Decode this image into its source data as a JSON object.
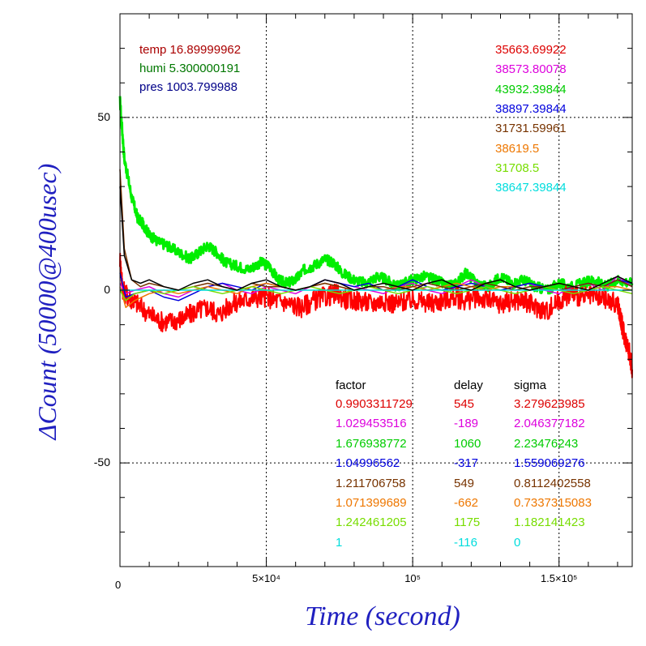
{
  "chart_data": {
    "type": "line",
    "xlabel": "Time (second)",
    "ylabel": "ΔCount (50000@400usec)",
    "xlim": [
      0,
      175000
    ],
    "ylim": [
      -80,
      80
    ],
    "x_ticks": [
      {
        "value": 0,
        "label": "0"
      },
      {
        "value": 50000,
        "label": "5×10⁴"
      },
      {
        "value": 100000,
        "label": "10⁵"
      },
      {
        "value": 150000,
        "label": "1.5×10⁵"
      }
    ],
    "y_ticks": [
      {
        "value": 50,
        "label": "50"
      },
      {
        "value": 0,
        "label": "0"
      },
      {
        "value": -50,
        "label": "-50"
      }
    ],
    "grid": true,
    "env": [
      {
        "label": "temp 16.89999962",
        "color": "#aa0000"
      },
      {
        "label": "humi 5.300000191",
        "color": "#007700"
      },
      {
        "label": "pres 1003.799988",
        "color": "#000088"
      }
    ],
    "legend_values": [
      {
        "value": "35663.69922",
        "color": "#dd0000"
      },
      {
        "value": "38573.80078",
        "color": "#dd00dd"
      },
      {
        "value": "43932.39844",
        "color": "#00cc00"
      },
      {
        "value": "38897.39844",
        "color": "#0000dd"
      },
      {
        "value": "31731.59961",
        "color": "#773300"
      },
      {
        "value": "38619.5",
        "color": "#ee7700"
      },
      {
        "value": "31708.5",
        "color": "#77dd00"
      },
      {
        "value": "38647.39844",
        "color": "#00dddd"
      }
    ],
    "table": {
      "headers": [
        "factor",
        "delay",
        "sigma"
      ],
      "rows": [
        {
          "factor": "0.9903311729",
          "delay": "545",
          "sigma": "3.279623985",
          "color": "#dd0000"
        },
        {
          "factor": "1.029453516",
          "delay": "-189",
          "sigma": "2.046377182",
          "color": "#dd00dd"
        },
        {
          "factor": "1.676938772",
          "delay": "1060",
          "sigma": "2.23476243",
          "color": "#00cc00"
        },
        {
          "factor": "1.04996562",
          "delay": "-317",
          "sigma": "1.559069276",
          "color": "#0000dd"
        },
        {
          "factor": "1.211706758",
          "delay": "549",
          "sigma": "0.8112402558",
          "color": "#773300"
        },
        {
          "factor": "1.071399689",
          "delay": "-662",
          "sigma": "0.7337315083",
          "color": "#ee7700"
        },
        {
          "factor": "1.242461205",
          "delay": "1175",
          "sigma": "1.182141423",
          "color": "#77dd00"
        },
        {
          "factor": "1",
          "delay": "-116",
          "sigma": "0",
          "color": "#00dddd"
        }
      ]
    },
    "series": [
      {
        "color": "#00ee00",
        "band": 3,
        "x": [
          0,
          1500,
          4000,
          6000,
          8000,
          10000,
          13000,
          16000,
          20000,
          24000,
          27000,
          30000,
          33000,
          36000,
          40000,
          44000,
          48000,
          51000,
          54000,
          57000,
          60000,
          63000,
          66000,
          70000,
          73000,
          76000,
          80000,
          84000,
          88000,
          91000,
          94000,
          97000,
          100000,
          104000,
          108000,
          112000,
          115000,
          118000,
          122000,
          126000,
          130000,
          134000,
          138000,
          142000,
          146000,
          150000,
          154000,
          158000,
          162000,
          166000,
          170000,
          175000
        ],
        "y": [
          55,
          38,
          27,
          21,
          19,
          16,
          14,
          13,
          11,
          9,
          11,
          13,
          11,
          8,
          7,
          6,
          8,
          7,
          3,
          2,
          3,
          6,
          7,
          9,
          8,
          5,
          3,
          2,
          4,
          3,
          1,
          2,
          3,
          4,
          3,
          1,
          2,
          5,
          2,
          1,
          4,
          2,
          3,
          1,
          0,
          2,
          1,
          2,
          3,
          1,
          3,
          2
        ]
      },
      {
        "color": "#ff0000",
        "band": 6,
        "x": [
          0,
          1000,
          3000,
          6000,
          10000,
          14000,
          18000,
          22000,
          26000,
          30000,
          34000,
          38000,
          42000,
          46000,
          50000,
          54000,
          58000,
          62000,
          66000,
          70000,
          74000,
          78000,
          82000,
          86000,
          90000,
          94000,
          98000,
          102000,
          106000,
          110000,
          114000,
          118000,
          122000,
          126000,
          130000,
          134000,
          138000,
          142000,
          146000,
          150000,
          154000,
          158000,
          162000,
          166000,
          170000,
          171000,
          172000,
          173000,
          174000,
          175000
        ],
        "y": [
          9,
          0,
          -2,
          -4,
          -7,
          -9,
          -9,
          -8,
          -6,
          -5,
          -7,
          -4,
          -3,
          -2,
          -2,
          -3,
          -4,
          -5,
          -3,
          -2,
          -1,
          -3,
          -3,
          -4,
          -3,
          -4,
          -3,
          -3,
          -4,
          -3,
          -2,
          -3,
          -2,
          -3,
          -4,
          -3,
          -3,
          -5,
          -6,
          -3,
          -1,
          -2,
          -2,
          -3,
          -4,
          -8,
          -12,
          -15,
          -18,
          -23
        ]
      },
      {
        "color": "#dd00dd",
        "band": 0,
        "x": [
          0,
          2000,
          5000,
          10000,
          15000,
          20000,
          25000,
          30000,
          35000,
          40000,
          45000,
          50000,
          55000,
          60000,
          65000,
          70000,
          75000,
          80000,
          85000,
          90000,
          95000,
          100000,
          105000,
          110000,
          115000,
          120000,
          125000,
          130000,
          135000,
          140000,
          145000,
          150000,
          155000,
          160000,
          165000,
          170000,
          175000
        ],
        "y": [
          2,
          -1,
          0,
          1,
          -1,
          -2,
          0,
          1,
          2,
          0,
          -1,
          1,
          0,
          -1,
          1,
          3,
          2,
          1,
          0,
          -1,
          1,
          2,
          0,
          -1,
          1,
          3,
          1,
          0,
          1,
          2,
          0,
          -1,
          1,
          2,
          0,
          4,
          1
        ]
      },
      {
        "color": "#0000dd",
        "band": 0,
        "x": [
          0,
          2000,
          5000,
          10000,
          15000,
          20000,
          25000,
          30000,
          35000,
          40000,
          45000,
          50000,
          55000,
          60000,
          65000,
          70000,
          75000,
          80000,
          85000,
          90000,
          95000,
          100000,
          105000,
          110000,
          115000,
          120000,
          125000,
          130000,
          135000,
          140000,
          145000,
          150000,
          155000,
          160000,
          165000,
          170000,
          175000
        ],
        "y": [
          5,
          -2,
          -1,
          0,
          -2,
          -3,
          -1,
          1,
          2,
          1,
          0,
          2,
          1,
          0,
          1,
          3,
          2,
          1,
          2,
          0,
          1,
          3,
          1,
          0,
          1,
          2,
          1,
          0,
          1,
          2,
          1,
          0,
          1,
          2,
          1,
          3,
          2
        ]
      },
      {
        "color": "#ee7700",
        "band": 0,
        "x": [
          0,
          2000,
          5000,
          10000,
          15000,
          20000,
          25000,
          30000,
          35000,
          40000,
          45000,
          50000,
          55000,
          60000,
          65000,
          70000,
          75000,
          80000,
          85000,
          90000,
          95000,
          100000,
          105000,
          110000,
          115000,
          120000,
          125000,
          130000,
          135000,
          140000,
          145000,
          150000,
          155000,
          160000,
          165000,
          170000,
          175000
        ],
        "y": [
          1,
          -5,
          -3,
          -1,
          0,
          -1,
          0,
          1,
          0,
          -1,
          1,
          2,
          1,
          0,
          1,
          2,
          1,
          0,
          1,
          0,
          1,
          1,
          0,
          1,
          2,
          1,
          0,
          1,
          1,
          0,
          1,
          2,
          1,
          0,
          1,
          1,
          0
        ]
      },
      {
        "color": "#773300",
        "band": 0,
        "x": [
          0,
          1500,
          4000,
          7000,
          10000,
          15000,
          20000,
          25000,
          30000,
          35000,
          40000,
          45000,
          50000,
          55000,
          60000,
          65000,
          70000,
          75000,
          80000,
          85000,
          90000,
          95000,
          100000,
          105000,
          110000,
          115000,
          120000,
          125000,
          130000,
          135000,
          140000,
          145000,
          150000,
          155000,
          160000,
          165000,
          170000,
          175000
        ],
        "y": [
          35,
          12,
          3,
          1,
          2,
          1,
          0,
          1,
          2,
          1,
          0,
          2,
          1,
          1,
          0,
          1,
          2,
          1,
          0,
          1,
          1,
          0,
          1,
          2,
          1,
          0,
          1,
          2,
          1,
          0,
          1,
          1,
          0,
          1,
          2,
          1,
          3,
          1
        ]
      },
      {
        "color": "#77dd00",
        "band": 0,
        "x": [
          0,
          2000,
          5000,
          10000,
          15000,
          20000,
          25000,
          30000,
          35000,
          40000,
          45000,
          50000,
          55000,
          60000,
          65000,
          70000,
          75000,
          80000,
          85000,
          90000,
          95000,
          100000,
          105000,
          110000,
          115000,
          120000,
          125000,
          130000,
          135000,
          140000,
          145000,
          150000,
          155000,
          160000,
          165000,
          170000,
          175000
        ],
        "y": [
          0,
          -3,
          -1,
          0,
          -1,
          0,
          1,
          0,
          -1,
          0,
          1,
          0,
          -1,
          0,
          1,
          0,
          -1,
          0,
          1,
          0,
          -1,
          0,
          1,
          0,
          -1,
          0,
          1,
          0,
          -1,
          0,
          1,
          0,
          -1,
          0,
          1,
          0,
          -1
        ]
      },
      {
        "color": "#00dddd",
        "band": 0,
        "x": [
          0,
          5000,
          10000,
          20000,
          30000,
          40000,
          50000,
          60000,
          70000,
          80000,
          90000,
          100000,
          110000,
          120000,
          130000,
          140000,
          150000,
          160000,
          170000,
          175000
        ],
        "y": [
          0,
          0,
          0,
          0,
          0,
          0,
          0,
          0,
          0,
          0,
          0,
          0,
          0,
          0,
          0,
          0,
          0,
          0,
          0,
          0
        ]
      },
      {
        "color": "#000000",
        "band": 0,
        "x": [
          0,
          1500,
          4000,
          7000,
          10000,
          15000,
          20000,
          25000,
          30000,
          35000,
          40000,
          45000,
          50000,
          55000,
          60000,
          65000,
          70000,
          75000,
          80000,
          85000,
          90000,
          95000,
          100000,
          105000,
          110000,
          115000,
          120000,
          125000,
          130000,
          135000,
          140000,
          145000,
          150000,
          155000,
          160000,
          165000,
          170000,
          175000
        ],
        "y": [
          30,
          10,
          3,
          2,
          3,
          1,
          0,
          2,
          3,
          1,
          0,
          2,
          3,
          1,
          0,
          1,
          3,
          2,
          0,
          1,
          2,
          1,
          0,
          2,
          3,
          1,
          0,
          2,
          3,
          1,
          0,
          1,
          2,
          1,
          0,
          2,
          4,
          2
        ]
      }
    ]
  }
}
